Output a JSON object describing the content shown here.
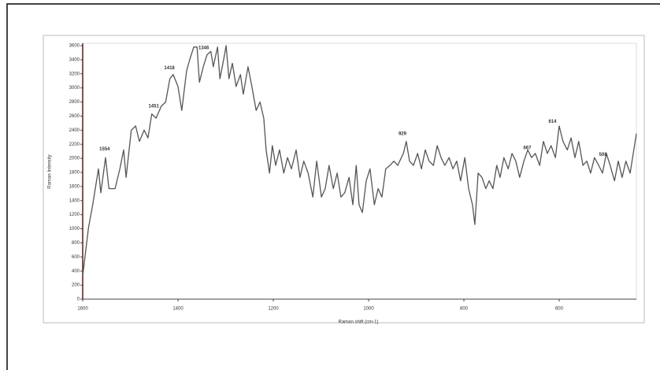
{
  "chart_data": {
    "type": "line",
    "x_label": "Raman shift (cm-1)",
    "y_label": "Raman Intensity",
    "color": "#555555",
    "xlim": [
      1600,
      438
    ],
    "ylim": [
      0,
      3600
    ],
    "xticks": [
      1600,
      1400,
      1200,
      1000,
      800,
      600
    ],
    "yticks": [
      0,
      200,
      400,
      600,
      800,
      1000,
      1200,
      1400,
      1600,
      1800,
      2000,
      2200,
      2400,
      2600,
      2800,
      3000,
      3200,
      3400,
      3600
    ],
    "x": [
      1600,
      1588,
      1579,
      1567,
      1562,
      1552,
      1545,
      1532,
      1522,
      1514,
      1509,
      1498,
      1489,
      1481,
      1471,
      1463,
      1455,
      1446,
      1435,
      1426,
      1417,
      1410,
      1400,
      1392,
      1382,
      1375,
      1367,
      1360,
      1355,
      1347,
      1339,
      1331,
      1326,
      1317,
      1312,
      1304,
      1299,
      1293,
      1286,
      1278,
      1269,
      1263,
      1253,
      1245,
      1236,
      1228,
      1220,
      1215,
      1208,
      1202,
      1195,
      1187,
      1178,
      1170,
      1162,
      1152,
      1144,
      1136,
      1127,
      1117,
      1109,
      1099,
      1091,
      1083,
      1074,
      1066,
      1058,
      1050,
      1041,
      1033,
      1026,
      1020,
      1013,
      1005,
      997,
      988,
      980,
      972,
      964,
      955,
      947,
      939,
      927,
      921,
      914,
      906,
      897,
      889,
      881,
      873,
      864,
      856,
      848,
      840,
      831,
      823,
      815,
      807,
      798,
      790,
      782,
      777,
      770,
      762,
      754,
      747,
      739,
      731,
      724,
      716,
      707,
      699,
      691,
      683,
      674,
      666,
      658,
      650,
      641,
      633,
      625,
      617,
      608,
      600,
      592,
      583,
      575,
      567,
      559,
      550,
      542,
      534,
      526,
      517,
      509,
      501,
      493,
      484,
      476,
      468,
      460,
      451,
      438
    ],
    "values": [
      330,
      1010,
      1340,
      1850,
      1510,
      2010,
      1570,
      1570,
      1850,
      2120,
      1730,
      2400,
      2460,
      2240,
      2400,
      2290,
      2630,
      2570,
      2740,
      2800,
      3130,
      3190,
      3020,
      2680,
      3240,
      3410,
      3580,
      3580,
      3080,
      3300,
      3470,
      3520,
      3300,
      3580,
      3130,
      3410,
      3600,
      3130,
      3350,
      3020,
      3190,
      2910,
      3300,
      3020,
      2680,
      2800,
      2570,
      2120,
      1790,
      2180,
      1900,
      2120,
      1790,
      2010,
      1850,
      2120,
      1730,
      1960,
      1790,
      1450,
      1960,
      1450,
      1570,
      1900,
      1570,
      1790,
      1450,
      1510,
      1730,
      1340,
      1900,
      1340,
      1230,
      1680,
      1850,
      1340,
      1570,
      1450,
      1850,
      1900,
      1960,
      1900,
      2070,
      2240,
      1960,
      1900,
      2070,
      1850,
      2120,
      1960,
      1900,
      2180,
      2010,
      1900,
      2010,
      1850,
      1960,
      1680,
      2010,
      1570,
      1340,
      1060,
      1790,
      1730,
      1570,
      1680,
      1570,
      1900,
      1730,
      2010,
      1850,
      2070,
      1960,
      1730,
      1960,
      2120,
      2010,
      2070,
      1900,
      2240,
      2070,
      2180,
      2010,
      2460,
      2240,
      2120,
      2290,
      2010,
      2240,
      1900,
      1960,
      1790,
      2010,
      1900,
      1790,
      2070,
      1900,
      1680,
      1960,
      1730,
      1960,
      1790,
      2350
    ],
    "annotations": [
      {
        "text": "1554",
        "x": 1554,
        "y": 2130
      },
      {
        "text": "1451",
        "x": 1451,
        "y": 2740
      },
      {
        "text": "1418",
        "x": 1418,
        "y": 3280
      },
      {
        "text": "1346",
        "x": 1346,
        "y": 3570
      },
      {
        "text": "929",
        "x": 929,
        "y": 2350
      },
      {
        "text": "667",
        "x": 667,
        "y": 2150
      },
      {
        "text": "614",
        "x": 614,
        "y": 2520
      },
      {
        "text": "508",
        "x": 508,
        "y": 2050
      }
    ]
  }
}
